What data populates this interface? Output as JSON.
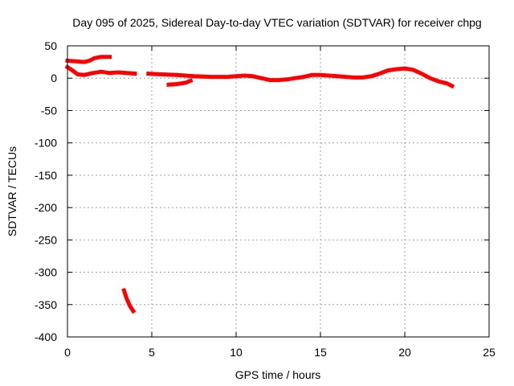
{
  "chart_data": {
    "type": "line",
    "title": "Day 095 of 2025, Sidereal Day-to-day VTEC variation (SDTVAR) for receiver chpg",
    "xlabel": "GPS time / hours",
    "ylabel": "SDTVAR / TECUs",
    "xlim": [
      0,
      25
    ],
    "ylim": [
      -400,
      50
    ],
    "xticks": [
      0,
      5,
      10,
      15,
      20,
      25
    ],
    "yticks": [
      50,
      0,
      -50,
      -100,
      -150,
      -200,
      -250,
      -300,
      -350,
      -400
    ],
    "grid": true,
    "legend": "none",
    "series_color": "#ff0000",
    "series": [
      {
        "name": "segment-1",
        "points": [
          [
            0.0,
            27
          ],
          [
            0.5,
            26
          ],
          [
            1.0,
            25
          ],
          [
            1.3,
            27
          ],
          [
            1.6,
            31
          ],
          [
            2.0,
            33
          ],
          [
            2.5,
            33
          ]
        ]
      },
      {
        "name": "segment-2",
        "points": [
          [
            0.0,
            17
          ],
          [
            0.3,
            12
          ],
          [
            0.6,
            6
          ],
          [
            1.0,
            5
          ],
          [
            1.5,
            8
          ],
          [
            2.0,
            10
          ],
          [
            2.5,
            8
          ],
          [
            3.0,
            9
          ],
          [
            3.5,
            8
          ],
          [
            4.0,
            7
          ]
        ]
      },
      {
        "name": "segment-3",
        "points": [
          [
            4.8,
            7
          ],
          [
            5.5,
            6
          ],
          [
            6.5,
            5
          ],
          [
            7.5,
            3
          ],
          [
            8.5,
            2
          ],
          [
            9.5,
            2
          ],
          [
            10.0,
            3
          ],
          [
            10.5,
            4
          ],
          [
            11.0,
            3
          ],
          [
            11.5,
            0
          ],
          [
            12.0,
            -3
          ],
          [
            12.5,
            -3
          ],
          [
            13.0,
            -2
          ],
          [
            13.5,
            0
          ],
          [
            14.0,
            2
          ],
          [
            14.5,
            5
          ],
          [
            15.0,
            5
          ],
          [
            15.5,
            4
          ],
          [
            16.0,
            3
          ],
          [
            16.5,
            2
          ],
          [
            17.0,
            1
          ],
          [
            17.5,
            1
          ],
          [
            18.0,
            3
          ],
          [
            18.5,
            7
          ],
          [
            19.0,
            12
          ],
          [
            19.5,
            14
          ],
          [
            20.0,
            15
          ],
          [
            20.5,
            13
          ],
          [
            21.0,
            7
          ],
          [
            21.5,
            0
          ],
          [
            22.0,
            -5
          ],
          [
            22.5,
            -8
          ],
          [
            22.8,
            -12
          ]
        ]
      },
      {
        "name": "segment-4",
        "points": [
          [
            6.0,
            -10
          ],
          [
            6.5,
            -9
          ],
          [
            7.0,
            -7
          ],
          [
            7.3,
            -4
          ]
        ]
      },
      {
        "name": "segment-5",
        "points": [
          [
            3.35,
            -328
          ],
          [
            3.5,
            -340
          ],
          [
            3.7,
            -352
          ],
          [
            3.9,
            -360
          ]
        ]
      }
    ]
  }
}
